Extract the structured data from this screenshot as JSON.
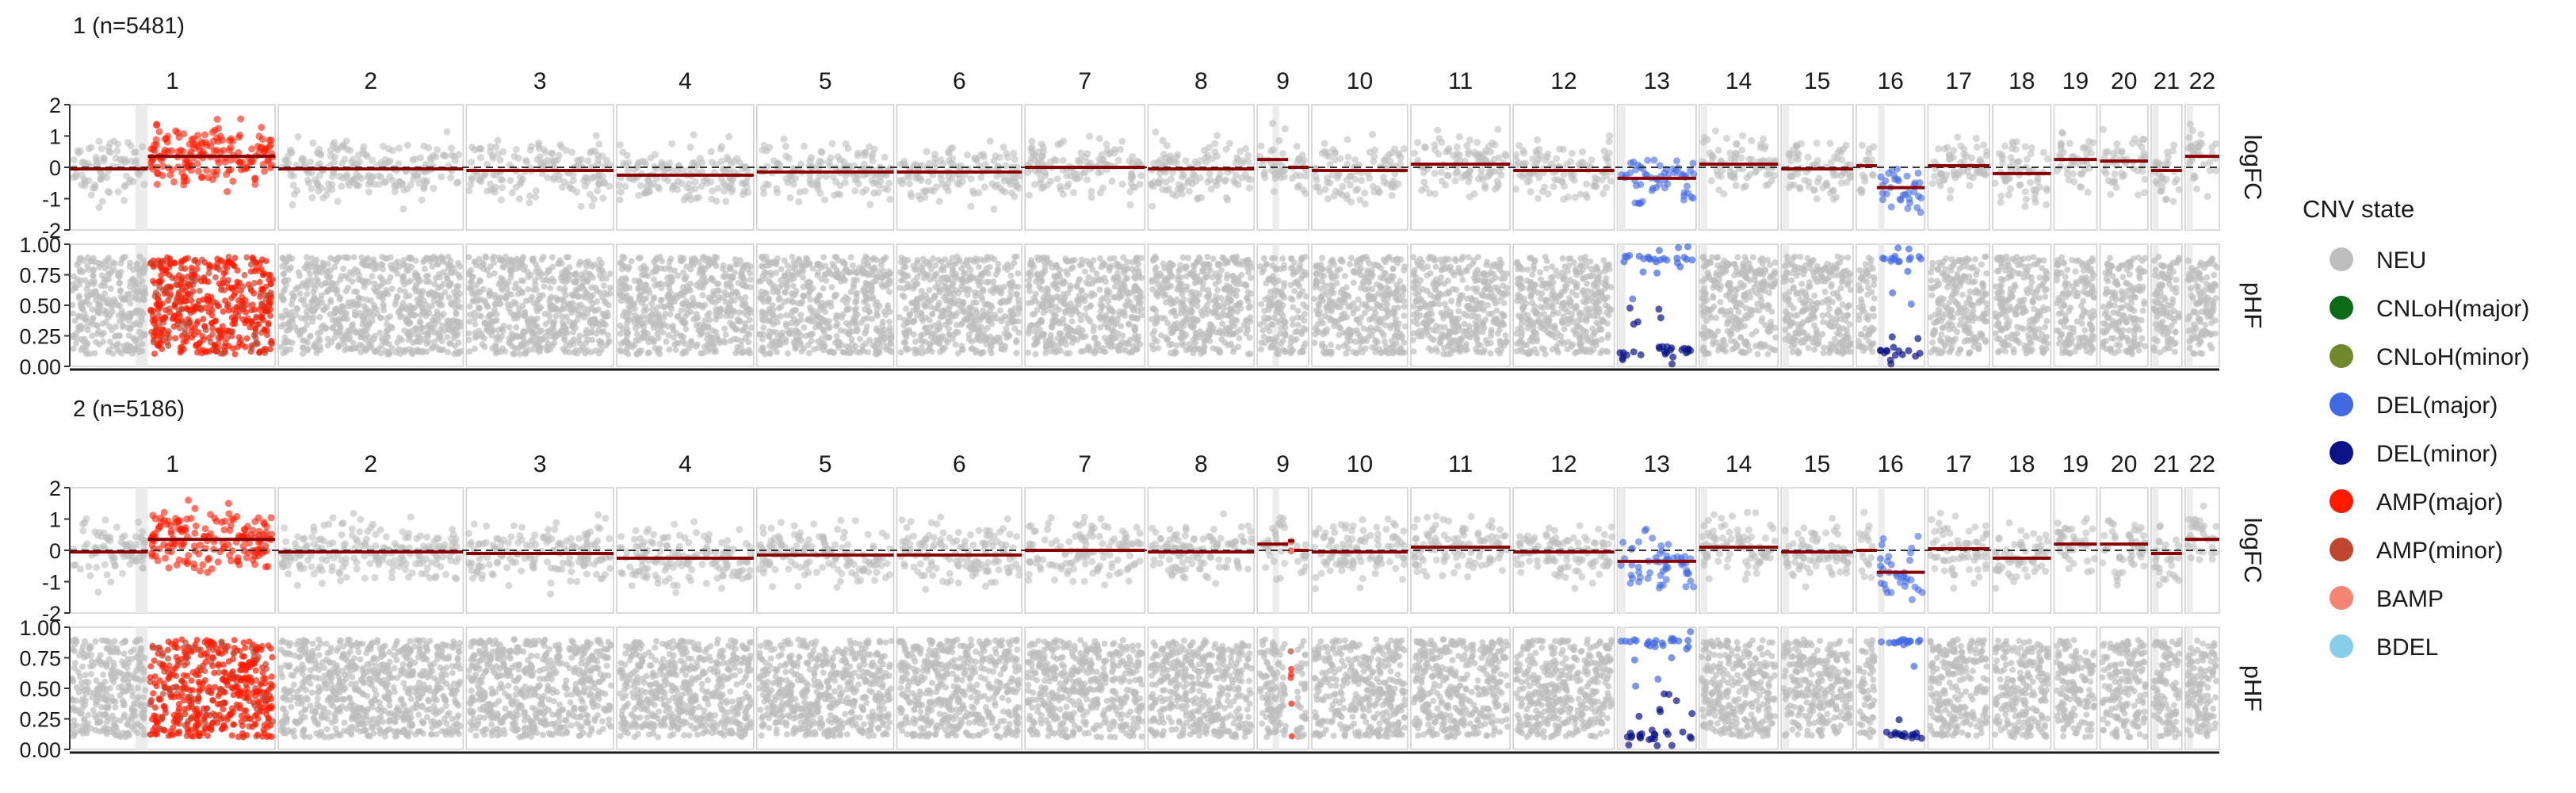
{
  "legend": {
    "title": "CNV state",
    "placement": "right",
    "items": [
      {
        "label": "NEU",
        "color": "#bebebe"
      },
      {
        "label": "CNLoH(major)",
        "color": "#0b6b16"
      },
      {
        "label": "CNLoH(minor)",
        "color": "#6f8a2c"
      },
      {
        "label": "DEL(major)",
        "color": "#4169e1"
      },
      {
        "label": "DEL(minor)",
        "color": "#0a1488"
      },
      {
        "label": "AMP(major)",
        "color": "#ff1a00"
      },
      {
        "label": "AMP(minor)",
        "color": "#c1462f"
      },
      {
        "label": "BAMP",
        "color": "#f58473"
      },
      {
        "label": "BDEL",
        "color": "#87ceeb"
      }
    ]
  },
  "chart_data": {
    "type": "scatter",
    "chromosomes": [
      "1",
      "2",
      "3",
      "4",
      "5",
      "6",
      "7",
      "8",
      "9",
      "10",
      "11",
      "12",
      "13",
      "14",
      "15",
      "16",
      "17",
      "18",
      "19",
      "20",
      "21",
      "22"
    ],
    "chrom_relative_widths": [
      1.2,
      1.08,
      0.86,
      0.8,
      0.8,
      0.73,
      0.7,
      0.62,
      0.3,
      0.56,
      0.58,
      0.59,
      0.46,
      0.46,
      0.42,
      0.4,
      0.36,
      0.34,
      0.25,
      0.28,
      0.18,
      0.2
    ],
    "facet_rows": [
      "logFC",
      "pHF"
    ],
    "logFC_axis": {
      "ylim": [
        -2,
        2
      ],
      "ticks": [
        -2,
        -1,
        0,
        1,
        2
      ],
      "reference_line": 0
    },
    "pHF_axis": {
      "ylim": [
        0,
        1
      ],
      "ticks": [
        "0.00",
        "0.25",
        "0.50",
        "0.75",
        "1.00"
      ]
    },
    "panels": [
      {
        "title": "1 (n=5481)",
        "segments": [
          {
            "chrom": "1",
            "range": [
              0,
              0.38
            ],
            "state": "NEU",
            "logFC": -0.05
          },
          {
            "chrom": "1",
            "range": [
              0.38,
              1
            ],
            "state": "AMP(major)",
            "logFC": 0.35
          },
          {
            "chrom": "2",
            "range": [
              0,
              1
            ],
            "state": "NEU",
            "logFC": -0.05
          },
          {
            "chrom": "3",
            "range": [
              0,
              1
            ],
            "state": "NEU",
            "logFC": -0.1
          },
          {
            "chrom": "4",
            "range": [
              0,
              1
            ],
            "state": "NEU",
            "logFC": -0.25
          },
          {
            "chrom": "5",
            "range": [
              0,
              1
            ],
            "state": "NEU",
            "logFC": -0.15
          },
          {
            "chrom": "6",
            "range": [
              0,
              1
            ],
            "state": "NEU",
            "logFC": -0.15
          },
          {
            "chrom": "7",
            "range": [
              0,
              1
            ],
            "state": "NEU",
            "logFC": 0.0
          },
          {
            "chrom": "8",
            "range": [
              0,
              1
            ],
            "state": "NEU",
            "logFC": -0.05
          },
          {
            "chrom": "9",
            "range": [
              0,
              0.6
            ],
            "state": "NEU",
            "logFC": 0.25
          },
          {
            "chrom": "9",
            "range": [
              0.6,
              1
            ],
            "state": "NEU",
            "logFC": 0.0
          },
          {
            "chrom": "10",
            "range": [
              0,
              1
            ],
            "state": "NEU",
            "logFC": -0.1
          },
          {
            "chrom": "11",
            "range": [
              0,
              1
            ],
            "state": "NEU",
            "logFC": 0.1
          },
          {
            "chrom": "12",
            "range": [
              0,
              1
            ],
            "state": "NEU",
            "logFC": -0.1
          },
          {
            "chrom": "13",
            "range": [
              0,
              1
            ],
            "state": "DEL(major)",
            "logFC": -0.35
          },
          {
            "chrom": "14",
            "range": [
              0,
              1
            ],
            "state": "NEU",
            "logFC": 0.1
          },
          {
            "chrom": "15",
            "range": [
              0,
              1
            ],
            "state": "NEU",
            "logFC": -0.05
          },
          {
            "chrom": "16",
            "range": [
              0,
              0.3
            ],
            "state": "NEU",
            "logFC": 0.05
          },
          {
            "chrom": "16",
            "range": [
              0.3,
              1
            ],
            "state": "DEL(major)",
            "logFC": -0.65
          },
          {
            "chrom": "17",
            "range": [
              0,
              1
            ],
            "state": "NEU",
            "logFC": 0.05
          },
          {
            "chrom": "18",
            "range": [
              0,
              1
            ],
            "state": "NEU",
            "logFC": -0.2
          },
          {
            "chrom": "19",
            "range": [
              0,
              1
            ],
            "state": "NEU",
            "logFC": 0.25
          },
          {
            "chrom": "20",
            "range": [
              0,
              1
            ],
            "state": "NEU",
            "logFC": 0.2
          },
          {
            "chrom": "21",
            "range": [
              0,
              1
            ],
            "state": "NEU",
            "logFC": -0.1
          },
          {
            "chrom": "22",
            "range": [
              0,
              1
            ],
            "state": "NEU",
            "logFC": 0.35
          }
        ]
      },
      {
        "title": "2 (n=5186)",
        "segments": [
          {
            "chrom": "1",
            "range": [
              0,
              0.38
            ],
            "state": "NEU",
            "logFC": -0.05
          },
          {
            "chrom": "1",
            "range": [
              0.38,
              1
            ],
            "state": "AMP(major)",
            "logFC": 0.35
          },
          {
            "chrom": "2",
            "range": [
              0,
              1
            ],
            "state": "NEU",
            "logFC": -0.05
          },
          {
            "chrom": "3",
            "range": [
              0,
              1
            ],
            "state": "NEU",
            "logFC": -0.1
          },
          {
            "chrom": "4",
            "range": [
              0,
              1
            ],
            "state": "NEU",
            "logFC": -0.25
          },
          {
            "chrom": "5",
            "range": [
              0,
              1
            ],
            "state": "NEU",
            "logFC": -0.15
          },
          {
            "chrom": "6",
            "range": [
              0,
              1
            ],
            "state": "NEU",
            "logFC": -0.15
          },
          {
            "chrom": "7",
            "range": [
              0,
              1
            ],
            "state": "NEU",
            "logFC": 0.0
          },
          {
            "chrom": "8",
            "range": [
              0,
              1
            ],
            "state": "NEU",
            "logFC": -0.05
          },
          {
            "chrom": "9",
            "range": [
              0,
              0.6
            ],
            "state": "NEU",
            "logFC": 0.2
          },
          {
            "chrom": "9",
            "range": [
              0.6,
              0.72
            ],
            "state": "AMP(major)",
            "logFC": 0.3
          },
          {
            "chrom": "9",
            "range": [
              0.72,
              1
            ],
            "state": "NEU",
            "logFC": 0.0
          },
          {
            "chrom": "10",
            "range": [
              0,
              1
            ],
            "state": "NEU",
            "logFC": -0.05
          },
          {
            "chrom": "11",
            "range": [
              0,
              1
            ],
            "state": "NEU",
            "logFC": 0.1
          },
          {
            "chrom": "12",
            "range": [
              0,
              1
            ],
            "state": "NEU",
            "logFC": -0.05
          },
          {
            "chrom": "13",
            "range": [
              0,
              1
            ],
            "state": "DEL(major)",
            "logFC": -0.35
          },
          {
            "chrom": "14",
            "range": [
              0,
              1
            ],
            "state": "NEU",
            "logFC": 0.1
          },
          {
            "chrom": "15",
            "range": [
              0,
              1
            ],
            "state": "NEU",
            "logFC": -0.05
          },
          {
            "chrom": "16",
            "range": [
              0,
              0.3
            ],
            "state": "NEU",
            "logFC": 0.0
          },
          {
            "chrom": "16",
            "range": [
              0.3,
              1
            ],
            "state": "DEL(major)",
            "logFC": -0.7
          },
          {
            "chrom": "17",
            "range": [
              0,
              1
            ],
            "state": "NEU",
            "logFC": 0.05
          },
          {
            "chrom": "18",
            "range": [
              0,
              1
            ],
            "state": "NEU",
            "logFC": -0.25
          },
          {
            "chrom": "19",
            "range": [
              0,
              1
            ],
            "state": "NEU",
            "logFC": 0.2
          },
          {
            "chrom": "20",
            "range": [
              0,
              1
            ],
            "state": "NEU",
            "logFC": 0.2
          },
          {
            "chrom": "21",
            "range": [
              0,
              1
            ],
            "state": "NEU",
            "logFC": -0.1
          },
          {
            "chrom": "22",
            "range": [
              0,
              1
            ],
            "state": "NEU",
            "logFC": 0.35
          }
        ]
      }
    ]
  }
}
